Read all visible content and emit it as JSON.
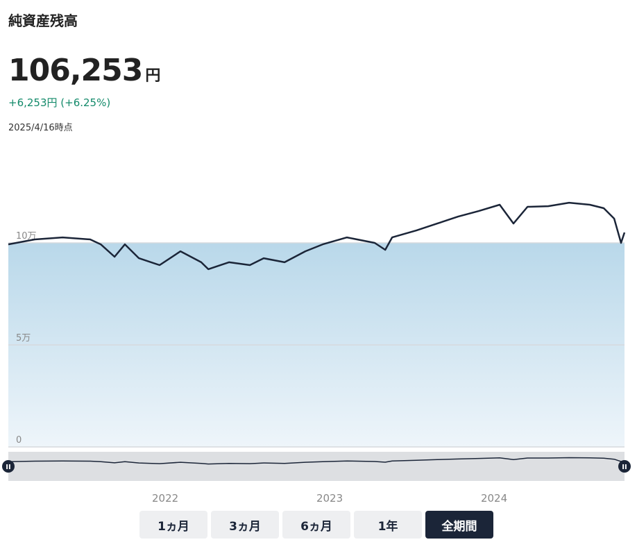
{
  "header": {
    "title": "純資産残高",
    "amount": "106,253",
    "amount_unit": "円",
    "change": "+6,253円 (+6.25%)",
    "as_of": "2025/4/16時点"
  },
  "chart_data": {
    "type": "line",
    "x": [
      2021.046,
      2021.207,
      2021.376,
      2021.544,
      2021.608,
      2021.692,
      2021.755,
      2021.84,
      2021.966,
      2022.093,
      2022.219,
      2022.262,
      2022.388,
      2022.515,
      2022.599,
      2022.726,
      2022.852,
      2022.958,
      2023.105,
      2023.274,
      2023.338,
      2023.38,
      2023.527,
      2023.654,
      2023.781,
      2023.907,
      2024.034,
      2024.118,
      2024.203,
      2024.329,
      2024.456,
      2024.582,
      2024.667,
      2024.73,
      2024.772,
      2024.793
    ],
    "series": [
      {
        "color": "#1b2538",
        "values": [
          99300,
          101700,
          102700,
          101700,
          99300,
          93200,
          99300,
          92500,
          89100,
          95900,
          90500,
          87100,
          90500,
          89100,
          92500,
          90500,
          95900,
          99300,
          102700,
          100000,
          96600,
          102700,
          106100,
          109500,
          112900,
          115600,
          118700,
          109500,
          117700,
          118000,
          119700,
          118700,
          117000,
          111900,
          100000,
          105100
        ]
      }
    ],
    "fill_level": 100000,
    "xlim": [
      2021.046,
      2024.793
    ],
    "xticks": [
      2022,
      2023,
      2024
    ],
    "ylim": [
      0,
      150000
    ],
    "yticks": [
      0,
      {
        "value": 50000,
        "label": "5万"
      },
      {
        "value": 100000,
        "label": "10万"
      }
    ],
    "grid": true
  },
  "range_buttons": [
    "1ヵ月",
    "3ヵ月",
    "6ヵ月",
    "1年",
    "全期間"
  ],
  "active_button": 4
}
